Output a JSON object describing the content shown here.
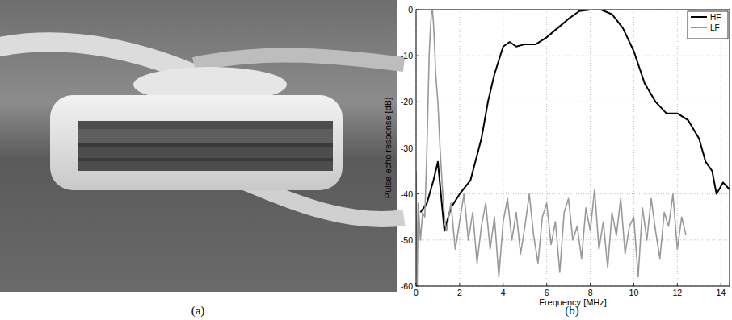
{
  "captions": [
    "(a)",
    "(b)"
  ],
  "chart_data": {
    "type": "line",
    "x_label": "Frequency [MHz]",
    "y_label": "Pulse echo response [dB]",
    "xlim": [
      0,
      14.4
    ],
    "ylim": [
      -60,
      0
    ],
    "xticks": [
      0,
      2,
      4,
      6,
      8,
      10,
      12,
      14
    ],
    "yticks": [
      -60,
      -50,
      -40,
      -30,
      -20,
      -10,
      0
    ],
    "grid": true,
    "legend": "top-right",
    "series": [
      {
        "name": "HF",
        "color": "#000000",
        "x": [
          0.2,
          0.5,
          0.8,
          1.0,
          1.3,
          1.6,
          2.0,
          2.5,
          3.0,
          3.3,
          3.6,
          4.0,
          4.3,
          4.6,
          5.0,
          5.5,
          6.0,
          6.5,
          7.0,
          7.5,
          8.0,
          8.5,
          9.0,
          9.5,
          10.0,
          10.5,
          11.0,
          11.5,
          12.0,
          12.5,
          13.0,
          13.3,
          13.6,
          13.8,
          14.1,
          14.4
        ],
        "values": [
          -44,
          -42,
          -37,
          -33,
          -48,
          -43,
          -40,
          -37,
          -28,
          -20,
          -14,
          -8,
          -7,
          -8,
          -7.5,
          -7.5,
          -6,
          -4,
          -2,
          -0.3,
          0,
          0,
          -1,
          -4,
          -9,
          -16,
          -20,
          -22.5,
          -22.5,
          -24,
          -28,
          -33,
          -35,
          -40,
          -37.5,
          -39
        ]
      },
      {
        "name": "LF",
        "color": "#999999",
        "x": [
          0,
          0.05,
          0.1,
          0.2,
          0.3,
          0.4,
          0.5,
          0.55,
          0.6,
          0.65,
          0.7,
          0.75,
          0.8,
          0.85,
          0.9,
          1.0,
          1.1,
          1.2,
          1.3,
          1.4,
          1.6,
          1.8,
          2.0,
          2.2,
          2.4,
          2.6,
          2.8,
          3.0,
          3.2,
          3.4,
          3.6,
          3.8,
          4.0,
          4.2,
          4.4,
          4.6,
          4.8,
          5.0,
          5.2,
          5.4,
          5.6,
          5.8,
          6.0,
          6.2,
          6.4,
          6.6,
          6.8,
          7.0,
          7.2,
          7.4,
          7.6,
          7.8,
          8.0,
          8.2,
          8.4,
          8.6,
          8.8,
          9.0,
          9.2,
          9.4,
          9.6,
          9.8,
          10.0,
          10.2,
          10.4,
          10.6,
          10.8,
          11.0,
          11.2,
          11.4,
          11.6,
          11.8,
          12.0,
          12.2,
          12.4
        ],
        "values": [
          -35,
          -60,
          -42,
          -50,
          -44,
          -45,
          -30,
          -20,
          -10,
          -5,
          -1,
          0,
          -3,
          -8,
          -14,
          -20,
          -30,
          -38,
          -45,
          -48,
          -42,
          -52,
          -46,
          -40,
          -50,
          -44,
          -55,
          -47,
          -42,
          -52,
          -45,
          -58,
          -46,
          -41,
          -50,
          -44,
          -53,
          -47,
          -40,
          -49,
          -55,
          -45,
          -42,
          -51,
          -46,
          -57,
          -44,
          -41,
          -50,
          -47,
          -54,
          -43,
          -48,
          -39,
          -52,
          -46,
          -56,
          -44,
          -49,
          -41,
          -53,
          -47,
          -45,
          -58,
          -43,
          -50,
          -41,
          -48,
          -54,
          -44,
          -47,
          -40,
          -52,
          -45,
          -49
        ]
      }
    ]
  }
}
